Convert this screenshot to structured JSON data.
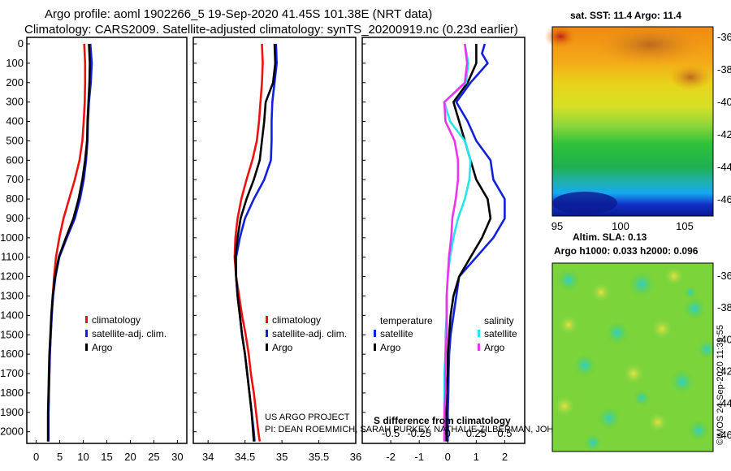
{
  "header": {
    "line1": "Argo profile: aoml 1902266_5 19-Sep-2020 41.45S 101.38E (NRT data)",
    "line2": "Climatology: CARS2009. Satellite-adjusted climatology: synTS_20200919.nc (0.23d earlier)"
  },
  "colors": {
    "climatology": "#ee1111",
    "satellite": "#1020dd",
    "argo": "#000000",
    "sat_salinity": "#22e6ee",
    "argo_salinity": "#ee33ee"
  },
  "credits": {
    "line1": "US ARGO PROJECT",
    "line2": "PI: DEAN ROEMMICH, SARAH PURKEY, NATHALIE ZILBERMAN, JOHN GILSON"
  },
  "chart_data": [
    {
      "type": "line",
      "panel": "temperature",
      "xlim": [
        -2,
        32
      ],
      "xticks": [
        "0",
        "5",
        "10",
        "15",
        "20",
        "25",
        "30"
      ],
      "ylim": [
        2060,
        0
      ],
      "yticks": [
        "0",
        "100",
        "200",
        "300",
        "400",
        "500",
        "600",
        "700",
        "800",
        "900",
        "1000",
        "1100",
        "1200",
        "1300",
        "1400",
        "1500",
        "1600",
        "1700",
        "1800",
        "1900",
        "2000"
      ],
      "legend": [
        "climatology",
        "satellite-adj. clim.",
        "Argo"
      ],
      "series": [
        {
          "name": "climatology",
          "depth": [
            0,
            100,
            200,
            300,
            400,
            500,
            600,
            700,
            800,
            900,
            1000,
            1100,
            1200,
            1300,
            1400,
            1500,
            1600,
            1700,
            1800,
            1900,
            2000,
            2050
          ],
          "values": [
            10.2,
            10.4,
            10.4,
            10.3,
            10.1,
            9.8,
            9.2,
            8.2,
            7.0,
            5.8,
            4.9,
            4.2,
            3.8,
            3.5,
            3.3,
            3.1,
            2.9,
            2.8,
            2.7,
            2.6,
            2.6,
            2.6
          ]
        },
        {
          "name": "satellite-adj. clim.",
          "depth": [
            0,
            100,
            200,
            300,
            400,
            500,
            600,
            700,
            800,
            900,
            1000,
            1100,
            1200,
            1300,
            1400,
            1500,
            1600,
            1700,
            1800,
            1900,
            2000,
            2050
          ],
          "values": [
            11.5,
            11.8,
            11.6,
            11.2,
            11.0,
            10.9,
            10.6,
            10.1,
            9.3,
            8.2,
            6.5,
            4.9,
            4.1,
            3.6,
            3.3,
            3.1,
            2.9,
            2.8,
            2.7,
            2.6,
            2.6,
            2.6
          ]
        },
        {
          "name": "Argo",
          "depth": [
            0,
            100,
            200,
            300,
            400,
            500,
            600,
            700,
            800,
            900,
            1000,
            1100,
            1200,
            1300,
            1400,
            1500,
            1600,
            1700,
            1800,
            1900,
            2000,
            2050
          ],
          "values": [
            11.2,
            11.4,
            11.3,
            11.1,
            10.9,
            10.8,
            10.4,
            9.8,
            9.0,
            7.9,
            6.3,
            4.8,
            4.0,
            3.5,
            3.2,
            3.0,
            2.8,
            2.7,
            2.6,
            2.5,
            2.5,
            2.5
          ]
        }
      ]
    },
    {
      "type": "line",
      "panel": "salinity",
      "xlim": [
        33.8,
        36.0
      ],
      "xticks": [
        "34",
        "34.5",
        "35",
        "35.5",
        "36"
      ],
      "ylim": [
        2060,
        0
      ],
      "legend": [
        "climatology",
        "satellite-adj. clim.",
        "Argo"
      ],
      "series": [
        {
          "name": "climatology",
          "depth": [
            0,
            100,
            200,
            300,
            400,
            500,
            600,
            700,
            800,
            900,
            1000,
            1100,
            1200,
            1300,
            1400,
            1500,
            1600,
            1700,
            1800,
            1900,
            2000,
            2050
          ],
          "values": [
            34.73,
            34.74,
            34.73,
            34.71,
            34.69,
            34.66,
            34.6,
            34.52,
            34.45,
            34.4,
            34.37,
            34.36,
            34.38,
            34.42,
            34.46,
            34.51,
            34.55,
            34.58,
            34.62,
            34.65,
            34.68,
            34.7
          ]
        },
        {
          "name": "satellite-adj. clim.",
          "depth": [
            0,
            100,
            200,
            300,
            400,
            500,
            600,
            700,
            800,
            900,
            1000,
            1100,
            1200,
            1300,
            1400,
            1500,
            1600,
            1700,
            1800,
            1900,
            2000,
            2050
          ],
          "values": [
            34.92,
            34.93,
            34.9,
            34.87,
            34.86,
            34.86,
            34.85,
            34.76,
            34.62,
            34.5,
            34.43,
            34.38,
            34.38,
            34.4,
            34.43,
            34.46,
            34.5,
            34.53,
            34.56,
            34.59,
            34.62,
            34.63
          ]
        },
        {
          "name": "Argo",
          "depth": [
            0,
            100,
            200,
            300,
            400,
            500,
            600,
            700,
            800,
            900,
            1000,
            1100,
            1200,
            1300,
            1400,
            1500,
            1600,
            1700,
            1800,
            1900,
            2000,
            2050
          ],
          "values": [
            34.9,
            34.91,
            34.88,
            34.78,
            34.76,
            34.73,
            34.7,
            34.62,
            34.52,
            34.44,
            34.4,
            34.37,
            34.38,
            34.4,
            34.43,
            34.46,
            34.5,
            34.53,
            34.56,
            34.59,
            34.61,
            34.62
          ]
        }
      ]
    },
    {
      "type": "line",
      "panel": "difference",
      "title": "S difference from climatology",
      "xlim": [
        -3.0,
        2.7
      ],
      "xticks_top": [
        "-0.5",
        "-0.25",
        "0",
        "0.25",
        "0.5"
      ],
      "xticks_bottom": [
        "-2",
        "-1",
        "0",
        "1",
        "2"
      ],
      "ylim": [
        2060,
        0
      ],
      "legend_titles": [
        "temperature",
        "salinity"
      ],
      "legend": [
        "satellite",
        "Argo",
        "satellite",
        "Argo"
      ],
      "series": [
        {
          "name": "temperature satellite",
          "depth": [
            0,
            50,
            100,
            200,
            300,
            400,
            500,
            600,
            700,
            800,
            900,
            1000,
            1100,
            1200,
            1300,
            1400,
            1500,
            1600,
            1700,
            1800,
            1900,
            2000,
            2050
          ],
          "values": [
            1.3,
            1.2,
            1.4,
            0.8,
            0.3,
            0.7,
            1.0,
            1.5,
            1.6,
            2.0,
            2.0,
            1.6,
            1.0,
            0.4,
            0.3,
            0.2,
            0.1,
            0.05,
            0.03,
            0.02,
            0.0,
            0.0,
            0.0
          ]
        },
        {
          "name": "temperature Argo",
          "depth": [
            0,
            100,
            200,
            300,
            400,
            500,
            600,
            700,
            800,
            900,
            1000,
            1100,
            1200,
            1300,
            1400,
            1500,
            1600,
            1700,
            1800,
            1900,
            2000,
            2050
          ],
          "values": [
            1.0,
            1.0,
            0.7,
            0.2,
            0.4,
            0.6,
            0.8,
            1.0,
            1.4,
            1.5,
            1.2,
            0.8,
            0.4,
            0.2,
            0.1,
            0.05,
            0.0,
            0.0,
            -0.05,
            -0.05,
            -0.05,
            -0.05
          ]
        },
        {
          "name": "salinity satellite",
          "depth": [
            0,
            100,
            200,
            300,
            400,
            500,
            600,
            700,
            800,
            900,
            1000,
            1100,
            1200,
            1300,
            1400,
            1500,
            1600,
            1700,
            1800,
            1900,
            2000,
            2050
          ],
          "values": [
            0.15,
            0.18,
            0.16,
            -0.03,
            0.02,
            0.15,
            0.2,
            0.19,
            0.15,
            0.09,
            0.05,
            0.02,
            0.0,
            -0.01,
            -0.01,
            -0.02,
            -0.02,
            -0.03,
            -0.03,
            -0.03,
            -0.03,
            -0.03
          ]
        },
        {
          "name": "salinity Argo",
          "depth": [
            0,
            100,
            200,
            300,
            400,
            500,
            600,
            700,
            800,
            900,
            1000,
            1100,
            1200,
            1300,
            1400,
            1500,
            1600,
            1700,
            1800,
            1900,
            2000,
            2050
          ],
          "values": [
            0.15,
            0.17,
            0.15,
            -0.03,
            -0.02,
            0.06,
            0.09,
            0.09,
            0.07,
            0.04,
            0.03,
            0.01,
            0.0,
            -0.01,
            -0.01,
            -0.01,
            -0.02,
            -0.02,
            -0.02,
            -0.03,
            -0.03,
            -0.03
          ]
        }
      ]
    }
  ],
  "map_top": {
    "title": "sat. SST: 11.4 Argo: 11.4",
    "yticks": [
      "-36",
      "-38",
      "-40",
      "-42",
      "-44",
      "-46"
    ],
    "xticks": [
      "95",
      "100",
      "105"
    ]
  },
  "map_bottom": {
    "title1": "Altim. SLA: 0.13",
    "title2": "Argo h1000: 0.033 h2000: 0.096",
    "yticks": [
      "-36",
      "-38",
      "-40",
      "-42",
      "-44",
      "-46"
    ]
  },
  "footer_stamp": "©IMOS 24-Sep-2020 11:39:55"
}
